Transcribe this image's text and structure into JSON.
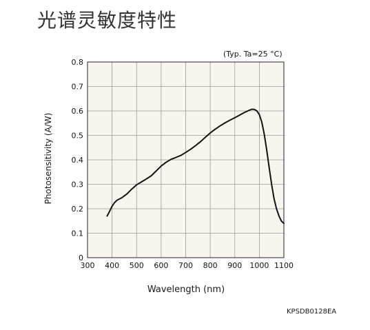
{
  "chart_data": {
    "type": "line",
    "title": "光谱灵敏度特性",
    "conditions": "(Typ. Ta=25 °C)",
    "xlabel": "Wavelength (nm)",
    "ylabel": "Photosensitivity (A/W)",
    "figure_code": "KPSDB0128EA",
    "xlim": [
      300,
      1100
    ],
    "ylim": [
      0,
      0.8
    ],
    "x_ticks": [
      300,
      400,
      500,
      600,
      700,
      800,
      900,
      1000,
      1100
    ],
    "y_ticks": [
      0,
      0.1,
      0.2,
      0.3,
      0.4,
      0.5,
      0.6,
      0.7,
      0.8
    ],
    "y_tick_labels": [
      "0",
      "0.1",
      "0.2",
      "0.3",
      "0.4",
      "0.5",
      "0.6",
      "0.7",
      "0.8"
    ],
    "grid": true,
    "background": "#f7f5ee",
    "line_color": "#111111",
    "series": [
      {
        "x": [
          380,
          390,
          400,
          410,
          420,
          440,
          460,
          480,
          500,
          520,
          540,
          560,
          580,
          600,
          620,
          640,
          660,
          680,
          700,
          720,
          740,
          760,
          780,
          800,
          820,
          840,
          860,
          880,
          900,
          920,
          940,
          960,
          970,
          980,
          990,
          1000,
          1010,
          1020,
          1030,
          1040,
          1050,
          1060,
          1070,
          1080,
          1090,
          1100
        ],
        "y": [
          0.17,
          0.19,
          0.21,
          0.225,
          0.235,
          0.245,
          0.26,
          0.28,
          0.298,
          0.31,
          0.322,
          0.335,
          0.355,
          0.375,
          0.39,
          0.402,
          0.41,
          0.418,
          0.43,
          0.443,
          0.458,
          0.474,
          0.492,
          0.51,
          0.525,
          0.539,
          0.551,
          0.562,
          0.572,
          0.583,
          0.594,
          0.603,
          0.607,
          0.606,
          0.6,
          0.585,
          0.555,
          0.505,
          0.44,
          0.37,
          0.3,
          0.24,
          0.2,
          0.17,
          0.15,
          0.14
        ]
      }
    ]
  }
}
